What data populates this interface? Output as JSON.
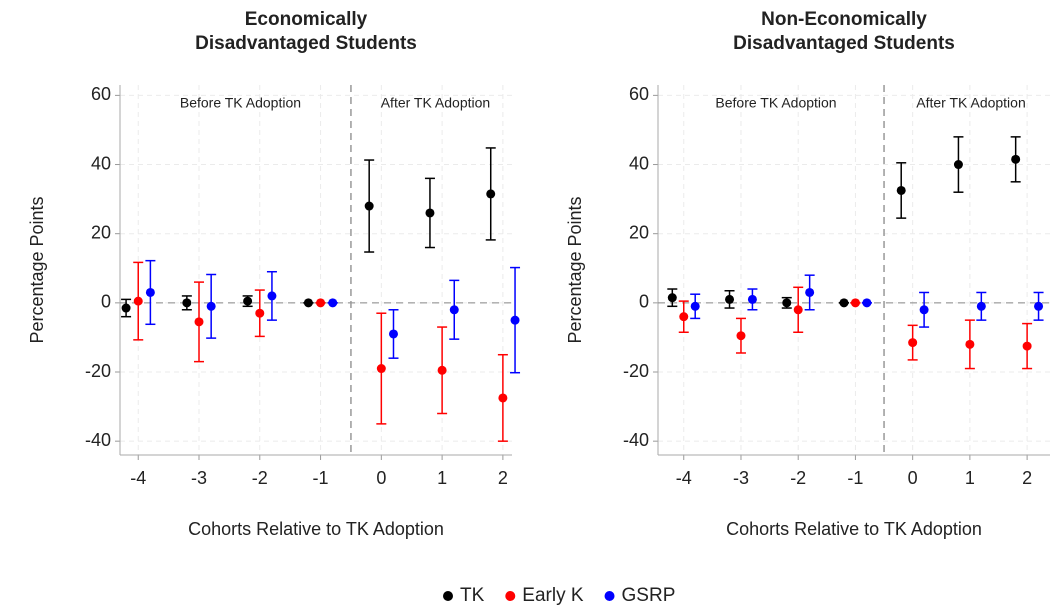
{
  "chart_data": [
    {
      "type": "errorbar",
      "title": [
        "Economically",
        "Disadvantaged Students"
      ],
      "x_label": "Cohorts Relative to TK Adoption",
      "y_label": "Percentage Points",
      "annotations": [
        "Before TK Adoption",
        "After TK Adoption"
      ],
      "x": [
        -4,
        -3,
        -2,
        -1,
        0,
        1,
        2
      ],
      "xlim": [
        -4.3,
        2.15
      ],
      "xticks": [
        -4,
        -3,
        -2,
        -1,
        0,
        1,
        2
      ],
      "ylim": [
        -44,
        63
      ],
      "yticks": [
        -40,
        -20,
        0,
        20,
        40,
        60
      ],
      "grid": true,
      "reference_lines": {
        "x": -0.5,
        "y": 0
      },
      "series": [
        {
          "color": "#000000",
          "values": [
            -1.5,
            0,
            0.5,
            0,
            28,
            26,
            31.5
          ],
          "errors": [
            2.5,
            2,
            1.5,
            0,
            13.3,
            10,
            13.3
          ]
        },
        {
          "color": "#ff0000",
          "values": [
            0.5,
            -5.5,
            -3,
            0,
            -19,
            -19.5,
            -27.5
          ],
          "errors": [
            11.2,
            11.5,
            6.7,
            0,
            16,
            12.5,
            12.5
          ]
        },
        {
          "color": "#0000ff",
          "values": [
            3,
            -1,
            2,
            0,
            -9,
            -2,
            -5
          ],
          "errors": [
            9.2,
            9.2,
            7,
            0,
            7,
            8.5,
            15.2
          ]
        }
      ]
    },
    {
      "type": "errorbar",
      "title": [
        "Non-Economically",
        "Disadvantaged Students"
      ],
      "x_label": "Cohorts Relative to TK Adoption",
      "y_label": "Percentage Points",
      "annotations": [
        "Before TK Adoption",
        "After TK Adoption"
      ],
      "x": [
        -4,
        -3,
        -2,
        -1,
        0,
        1,
        2
      ],
      "xlim": [
        -4.45,
        2.4
      ],
      "xticks": [
        -4,
        -3,
        -2,
        -1,
        0,
        1,
        2
      ],
      "ylim": [
        -44,
        63
      ],
      "yticks": [
        -40,
        -20,
        0,
        20,
        40,
        60
      ],
      "grid": true,
      "reference_lines": {
        "x": -0.5,
        "y": 0
      },
      "series": [
        {
          "color": "#000000",
          "values": [
            1.5,
            1,
            0,
            0,
            32.5,
            40,
            41.5
          ],
          "errors": [
            2.5,
            2.5,
            1.5,
            0,
            8,
            8,
            6.5
          ]
        },
        {
          "color": "#ff0000",
          "values": [
            -4,
            -9.5,
            -2,
            0,
            -11.5,
            -12,
            -12.5
          ],
          "errors": [
            4.5,
            5,
            6.5,
            0,
            5,
            7,
            6.5
          ]
        },
        {
          "color": "#0000ff",
          "values": [
            -1,
            1,
            3,
            0,
            -2,
            -1,
            -1
          ],
          "errors": [
            3.5,
            3,
            5,
            0,
            5,
            4,
            4
          ]
        }
      ]
    }
  ],
  "legend": {
    "position": "bottom",
    "entries": [
      {
        "name": "TK",
        "color": "#000000"
      },
      {
        "name": "Early K",
        "color": "#ff0000"
      },
      {
        "name": "GSRP",
        "color": "#0000ff"
      }
    ]
  }
}
